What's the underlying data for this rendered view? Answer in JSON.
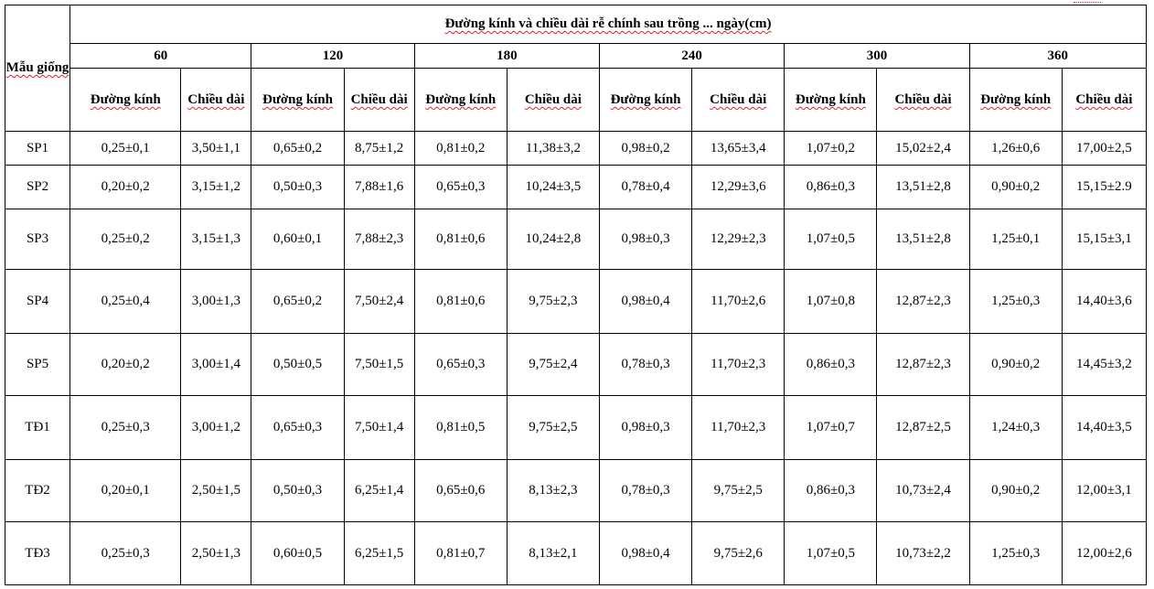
{
  "table": {
    "corner_header": "Mẫu giống",
    "main_header": "Đường kính và chiều dài rễ chính sau trồng ... ngày(cm)",
    "days": [
      "60",
      "120",
      "180",
      "240",
      "300",
      "360"
    ],
    "sub_headers": [
      "Đường kính",
      "Chiều dài",
      "Đường kính",
      "Chiều dài",
      "Đường kính",
      "Chiều dài",
      "Đường kính",
      "Chiều dài",
      "Đường kính",
      "Chiều dài",
      "Đường kính",
      "Chiều dài"
    ],
    "rows": [
      {
        "name": "SP1",
        "cells": [
          "0,25±0,1",
          "3,50±1,1",
          "0,65±0,2",
          "8,75±1,2",
          "0,81±0,2",
          "11,38±3,2",
          "0,98±0,2",
          "13,65±3,4",
          "1,07±0,2",
          "15,02±2,4",
          "1,26±0,6",
          "17,00±2,5"
        ]
      },
      {
        "name": "SP2",
        "cells": [
          "0,20±0,2",
          "3,15±1,2",
          "0,50±0,3",
          "7,88±1,6",
          "0,65±0,3",
          "10,24±3,5",
          "0,78±0,4",
          "12,29±3,6",
          "0,86±0,3",
          "13,51±2,8",
          "0,90±0,2",
          "15,15±2.9"
        ]
      },
      {
        "name": "SP3",
        "cells": [
          "0,25±0,2",
          "3,15±1,3",
          "0,60±0,1",
          "7,88±2,3",
          "0,81±0,6",
          "10,24±2,8",
          "0,98±0,3",
          "12,29±2,3",
          "1,07±0,5",
          "13,51±2,8",
          "1,25±0,1",
          "15,15±3,1"
        ]
      },
      {
        "name": "SP4",
        "cells": [
          "0,25±0,4",
          "3,00±1,3",
          "0,65±0,2",
          "7,50±2,4",
          "0,81±0,6",
          "9,75±2,3",
          "0,98±0,4",
          "11,70±2,6",
          "1,07±0,8",
          "12,87±2,3",
          "1,25±0,3",
          "14,40±3,6"
        ]
      },
      {
        "name": "SP5",
        "cells": [
          "0,20±0,2",
          "3,00±1,4",
          "0,50±0,5",
          "7,50±1,5",
          "0,65±0,3",
          "9,75±2,4",
          "0,78±0,3",
          "11,70±2,3",
          "0,86±0,3",
          "12,87±2,3",
          "0,90±0,2",
          "14,45±3,2"
        ]
      },
      {
        "name": "TĐ1",
        "cells": [
          "0,25±0,3",
          "3,00±1,2",
          "0,65±0,3",
          "7,50±1,4",
          "0,81±0,5",
          "9,75±2,5",
          "0,98±0,3",
          "11,70±2,3",
          "1,07±0,7",
          "12,87±2,5",
          "1,24±0,3",
          "14,40±3,5"
        ]
      },
      {
        "name": "TĐ2",
        "cells": [
          "0,20±0,1",
          "2,50±1,5",
          "0,50±0,3",
          "6,25±1,4",
          "0,65±0,6",
          "8,13±2,3",
          "0,78±0,3",
          "9,75±2,5",
          "0,86±0,3",
          "10,73±2,4",
          "0,90±0,2",
          "12,00±3,1"
        ]
      },
      {
        "name": "TĐ3",
        "cells": [
          "0,25±0,3",
          "2,50±1,3",
          "0,60±0,5",
          "6,25±1,5",
          "0,81±0,7",
          "8,13±2,1",
          "0,98±0,4",
          "9,75±2,6",
          "1,07±0,5",
          "10,73±2,2",
          "1,25±0,3",
          "12,00±2,6"
        ]
      }
    ]
  }
}
